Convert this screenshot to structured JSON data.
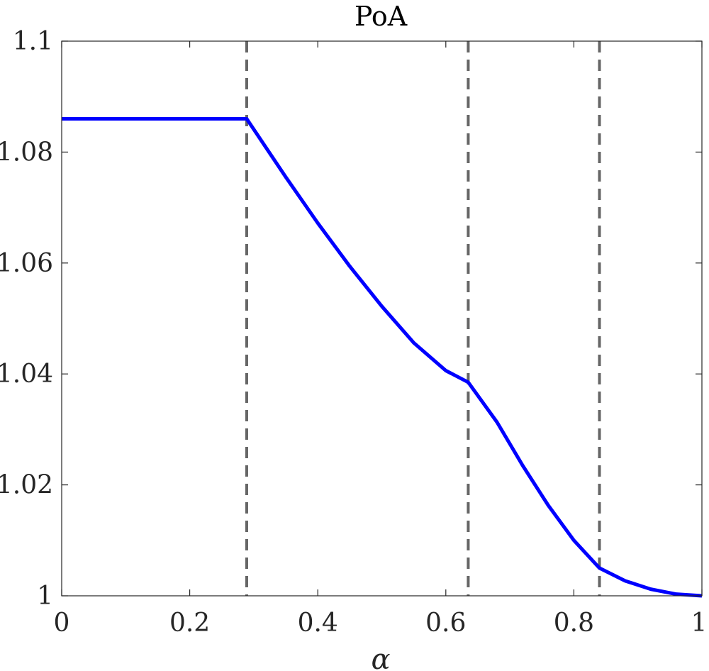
{
  "chart_data": {
    "type": "line",
    "title": "PoA",
    "xlabel": "α",
    "ylabel": "",
    "xlim": [
      0,
      1
    ],
    "ylim": [
      1,
      1.1
    ],
    "xticks": [
      "0",
      "0.2",
      "0.4",
      "0.6",
      "0.8",
      "1"
    ],
    "xtick_values": [
      0,
      0.2,
      0.4,
      0.6,
      0.8,
      1
    ],
    "yticks": [
      "1",
      "1.02",
      "1.04",
      "1.06",
      "1.08",
      "1.1"
    ],
    "ytick_values": [
      1,
      1.02,
      1.04,
      1.06,
      1.08,
      1.1
    ],
    "grid": false,
    "series": [
      {
        "color": "#0000ff",
        "x": [
          0,
          0.1,
          0.2,
          0.289,
          0.35,
          0.4,
          0.45,
          0.5,
          0.55,
          0.6,
          0.635,
          0.68,
          0.72,
          0.76,
          0.8,
          0.84,
          0.88,
          0.92,
          0.96,
          1.0
        ],
        "y": [
          1.086,
          1.086,
          1.086,
          1.086,
          1.0755,
          1.0672,
          1.0594,
          1.0522,
          1.0456,
          1.0406,
          1.0385,
          1.0313,
          1.0235,
          1.0163,
          1.01,
          1.005,
          1.0027,
          1.0012,
          1.0003,
          1.0
        ]
      }
    ],
    "vlines": {
      "x": [
        0.289,
        0.635,
        0.84
      ],
      "color": "#666666",
      "style": "dashed"
    },
    "colors": {
      "axes": "#262626",
      "frame_background": "#ffffff"
    }
  }
}
